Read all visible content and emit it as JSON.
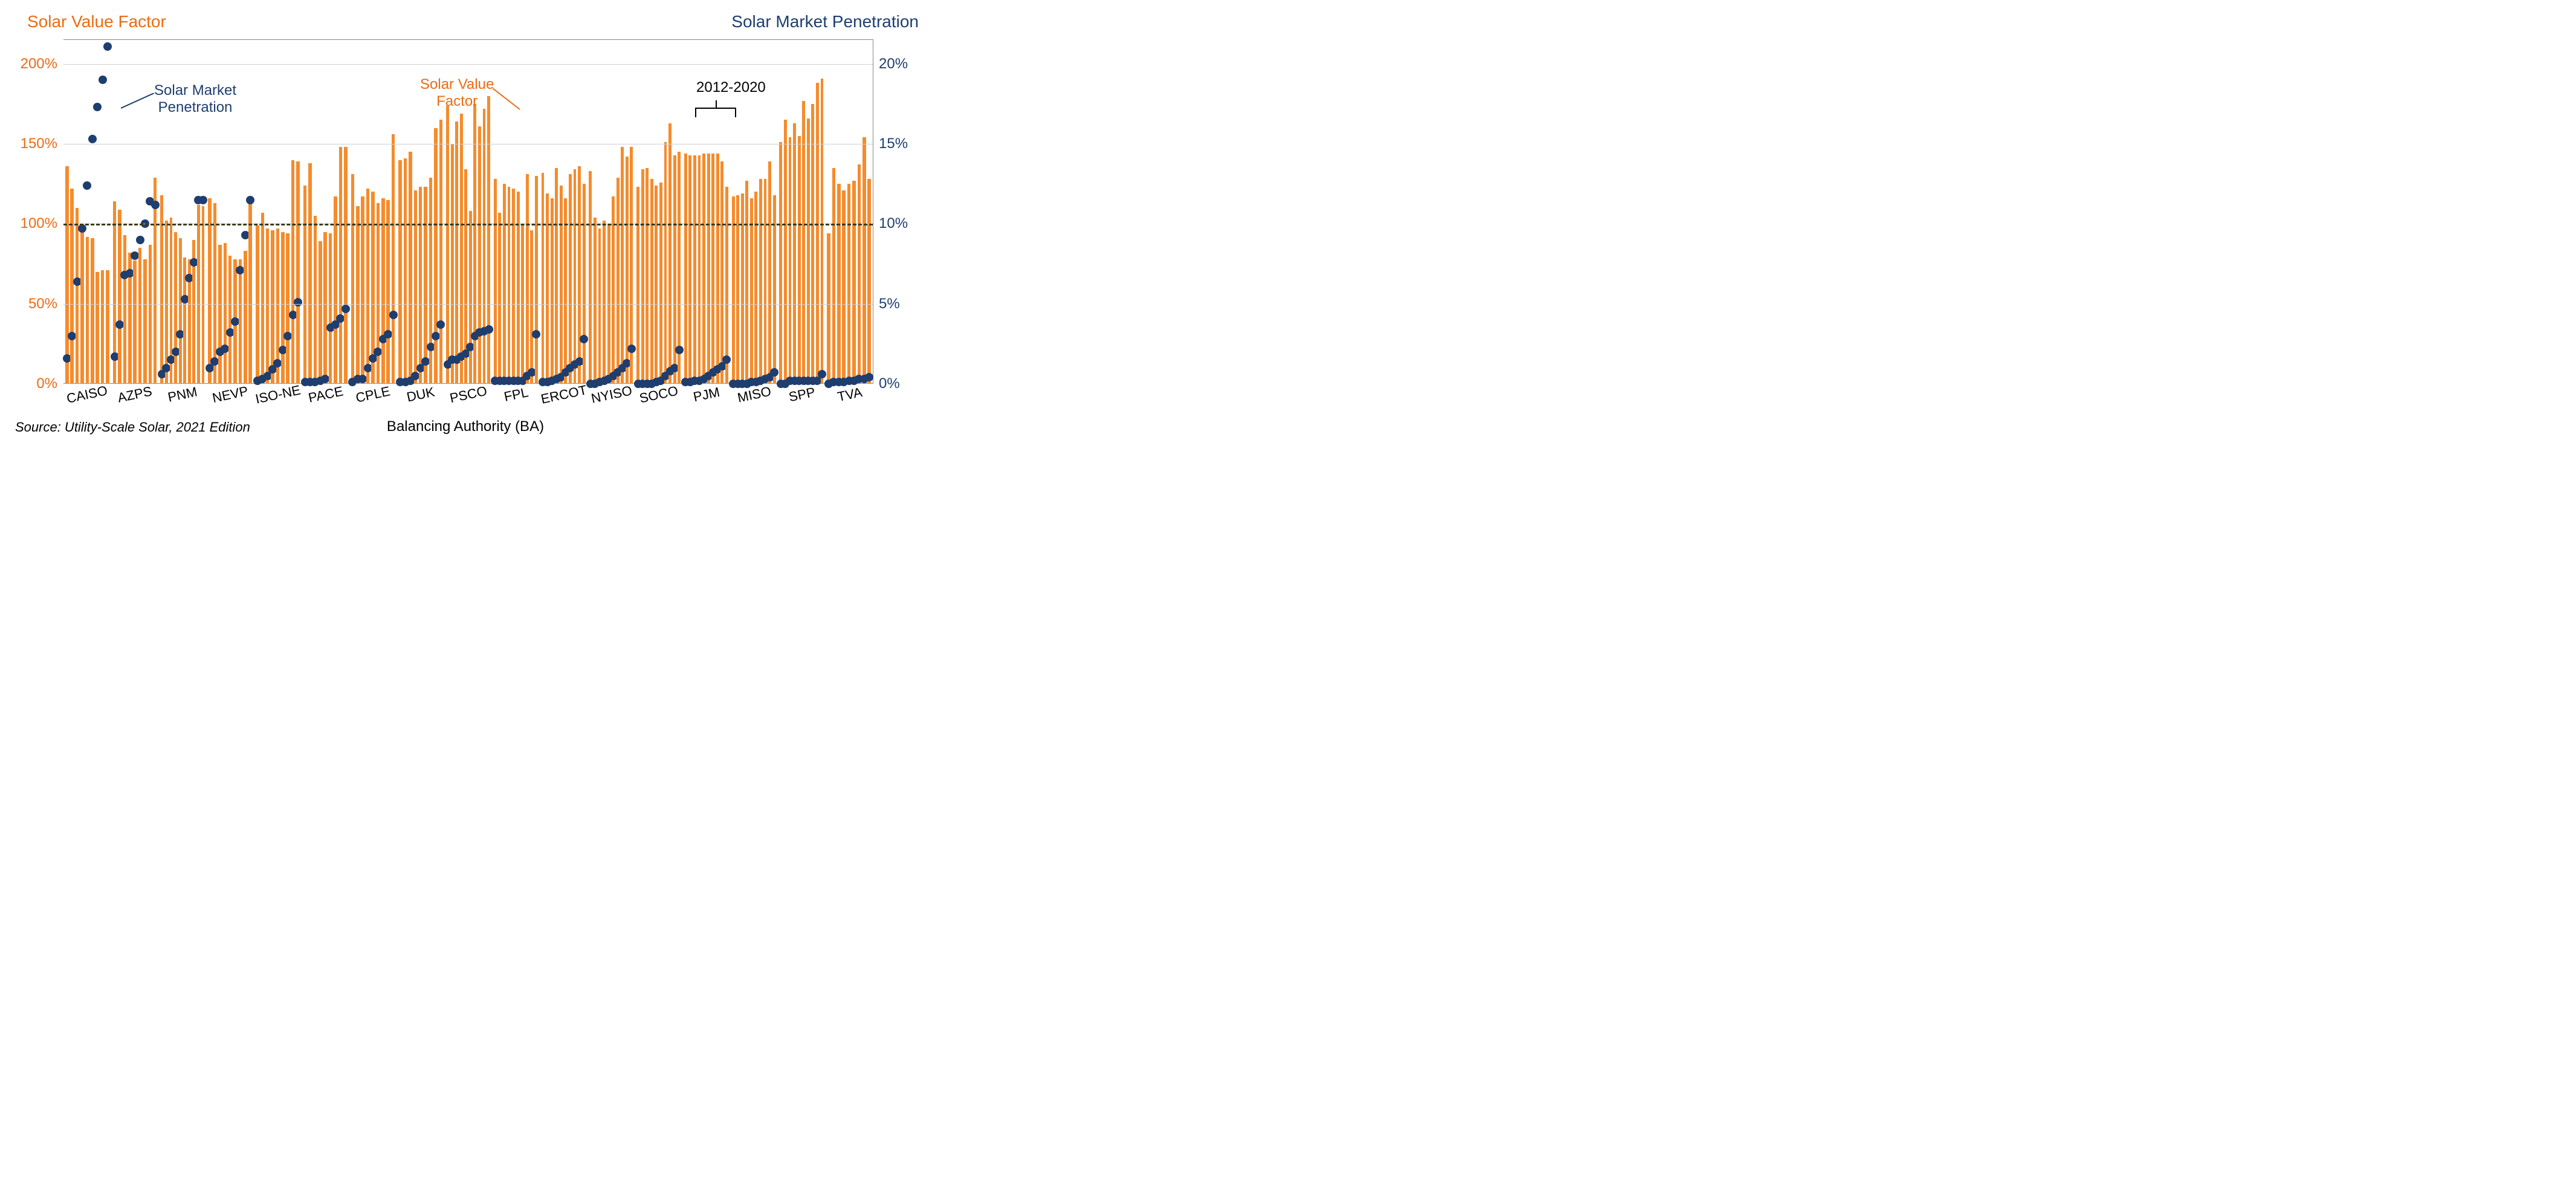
{
  "chart": {
    "type": "bar+scatter",
    "title_left": "Solar Value Factor",
    "title_right": "Solar Market Penetration",
    "title_fontsize": 28,
    "x_axis_label": "Balancing Authority (BA)",
    "source_note": "Source: Utility-Scale Solar, 2021 Edition",
    "bar_color": "#f58b2c",
    "dot_color": "#1e3e70",
    "grid_color": "#d0d0d0",
    "ref_line_color": "#3a3a1a",
    "background_color": "#ffffff",
    "left_axis": {
      "color": "#ec6b13",
      "min": 0,
      "max": 215,
      "ticks": [
        0,
        50,
        100,
        150,
        200
      ],
      "tick_labels": [
        "0%",
        "50%",
        "100%",
        "150%",
        "200%"
      ],
      "ref_line_at": 100
    },
    "right_axis": {
      "color": "#1e3e70",
      "min": 0,
      "max": 21.5,
      "ticks": [
        0,
        5,
        10,
        15,
        20
      ],
      "tick_labels": [
        "0%",
        "5%",
        "10%",
        "15%",
        "20%"
      ]
    },
    "annotations": {
      "penetration_label": "Solar Market\nPenetration",
      "value_label": "Solar Value\nFactor",
      "year_label": "2012-2020"
    },
    "categories": [
      "CAISO",
      "AZPS",
      "PNM",
      "NEVP",
      "ISO-NE",
      "PACE",
      "CPLE",
      "DUK",
      "PSCO",
      "FPL",
      "ERCOT",
      "NYISO",
      "SOCO",
      "PJM",
      "MISO",
      "SPP",
      "TVA"
    ],
    "series": {
      "CAISO": {
        "bars": [
          136,
          122,
          110,
          97,
          92,
          91,
          70,
          71,
          71
        ],
        "dots": [
          1.6,
          3.0,
          6.4,
          9.7,
          12.4,
          15.3,
          17.3,
          19.0,
          21.1
        ]
      },
      "AZPS": {
        "bars": [
          114,
          109,
          93,
          82,
          77,
          85,
          78,
          87,
          129
        ],
        "dots": [
          1.7,
          3.7,
          6.8,
          6.9,
          8.0,
          9.0,
          10.0,
          11.4,
          11.2
        ]
      },
      "PNM": {
        "bars": [
          118,
          102,
          104,
          95,
          91,
          79,
          78,
          90,
          112,
          111
        ],
        "dots": [
          0.6,
          1.0,
          1.5,
          2.0,
          3.1,
          5.3,
          6.6,
          7.6,
          11.5,
          11.5
        ]
      },
      "NEVP": {
        "bars": [
          116,
          113,
          87,
          88,
          80,
          78,
          78,
          83,
          113
        ],
        "dots": [
          1.0,
          1.4,
          2.0,
          2.2,
          3.2,
          3.9,
          7.1,
          9.3,
          11.5
        ]
      },
      "ISO-NE": {
        "bars": [
          99,
          107,
          97,
          96,
          97,
          95,
          94,
          140,
          139
        ],
        "dots": [
          0.2,
          0.3,
          0.5,
          0.9,
          1.3,
          2.1,
          3.0,
          4.3,
          5.1
        ]
      },
      "PACE": {
        "bars": [
          124,
          138,
          105,
          89,
          95,
          94,
          117,
          148,
          148
        ],
        "dots": [
          0.1,
          0.1,
          0.1,
          0.2,
          0.3,
          3.5,
          3.7,
          4.1,
          4.7
        ]
      },
      "CPLE": {
        "bars": [
          131,
          111,
          117,
          122,
          120,
          113,
          116,
          115,
          156
        ],
        "dots": [
          0.1,
          0.3,
          0.3,
          1.0,
          1.6,
          2.0,
          2.8,
          3.1,
          4.3
        ]
      },
      "DUK": {
        "bars": [
          140,
          141,
          145,
          121,
          123,
          123,
          129,
          160,
          165
        ],
        "dots": [
          0.1,
          0.1,
          0.2,
          0.5,
          1.0,
          1.4,
          2.3,
          3.0,
          3.7
        ]
      },
      "PSCO": {
        "bars": [
          174,
          150,
          164,
          169,
          134,
          108,
          175,
          161,
          172,
          180
        ],
        "dots": [
          1.2,
          1.5,
          1.5,
          1.7,
          1.9,
          2.3,
          3.0,
          3.2,
          3.3,
          3.4
        ]
      },
      "FPL": {
        "bars": [
          128,
          107,
          125,
          123,
          122,
          120,
          100,
          131,
          96,
          130
        ],
        "dots": [
          0.2,
          0.2,
          0.2,
          0.2,
          0.2,
          0.2,
          0.2,
          0.5,
          0.7,
          3.1
        ]
      },
      "ERCOT": {
        "bars": [
          132,
          119,
          116,
          135,
          124,
          116,
          131,
          134,
          136,
          125
        ],
        "dots": [
          0.1,
          0.1,
          0.2,
          0.3,
          0.4,
          0.7,
          1.0,
          1.2,
          1.4,
          2.8
        ]
      },
      "NYISO": {
        "bars": [
          133,
          104,
          97,
          102,
          100,
          117,
          129,
          148,
          142,
          148
        ],
        "dots": [
          0.0,
          0.0,
          0.1,
          0.2,
          0.3,
          0.5,
          0.7,
          1.0,
          1.3,
          2.2
        ]
      },
      "SOCO": {
        "bars": [
          123,
          134,
          135,
          128,
          124,
          126,
          151,
          163,
          143,
          145
        ],
        "dots": [
          0.0,
          0.0,
          0.0,
          0.0,
          0.1,
          0.2,
          0.5,
          0.8,
          1.0,
          2.1
        ]
      },
      "PJM": {
        "bars": [
          144,
          143,
          143,
          143,
          144,
          144,
          144,
          144,
          139,
          123
        ],
        "dots": [
          0.1,
          0.1,
          0.2,
          0.2,
          0.3,
          0.5,
          0.7,
          0.9,
          1.1,
          1.5
        ]
      },
      "MISO": {
        "bars": [
          117,
          118,
          119,
          127,
          116,
          120,
          128,
          128,
          139,
          118
        ],
        "dots": [
          0.0,
          0.0,
          0.0,
          0.0,
          0.1,
          0.1,
          0.2,
          0.3,
          0.4,
          0.7
        ]
      },
      "SPP": {
        "bars": [
          151,
          165,
          154,
          163,
          155,
          177,
          166,
          175,
          188,
          191
        ],
        "dots": [
          0.0,
          0.0,
          0.2,
          0.2,
          0.2,
          0.2,
          0.2,
          0.2,
          0.2,
          0.6
        ]
      },
      "TVA": {
        "bars": [
          94,
          135,
          125,
          121,
          125,
          127,
          137,
          154,
          128
        ],
        "dots": [
          0.0,
          0.1,
          0.1,
          0.1,
          0.2,
          0.2,
          0.3,
          0.3,
          0.4
        ]
      }
    }
  }
}
